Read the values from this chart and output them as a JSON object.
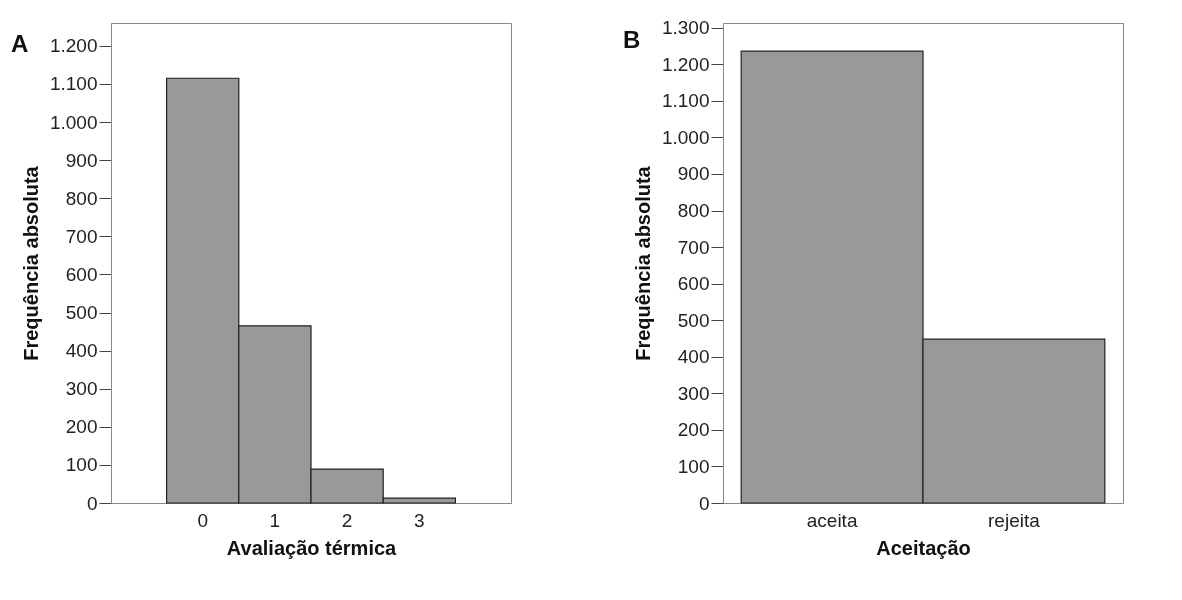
{
  "chart_data": [
    {
      "type": "bar",
      "title": "A",
      "xlabel": "Avaliação térmica",
      "ylabel": "Frequência absoluta",
      "categories": [
        "0",
        "1",
        "2",
        "3"
      ],
      "values": [
        1115,
        465,
        89,
        13
      ],
      "color": "#999999",
      "ylim": [
        0,
        1260
      ],
      "yticks": [
        {
          "value": 0,
          "label": "0"
        },
        {
          "value": 100,
          "label": "100"
        },
        {
          "value": 200,
          "label": "200"
        },
        {
          "value": 300,
          "label": "300"
        },
        {
          "value": 400,
          "label": "400"
        },
        {
          "value": 500,
          "label": "500"
        },
        {
          "value": 600,
          "label": "600"
        },
        {
          "value": 700,
          "label": "700"
        },
        {
          "value": 800,
          "label": "800"
        },
        {
          "value": 900,
          "label": "900"
        },
        {
          "value": 1000,
          "label": "1.000"
        },
        {
          "value": 1100,
          "label": "1.100"
        },
        {
          "value": 1200,
          "label": "1.200"
        }
      ],
      "grid": false
    },
    {
      "type": "bar",
      "title": "B",
      "xlabel": "Aceitação",
      "ylabel": "Frequência absoluta",
      "categories": [
        "aceita",
        "rejeita"
      ],
      "values": [
        1236,
        448
      ],
      "color": "#999999",
      "ylim": [
        0,
        1313
      ],
      "yticks": [
        {
          "value": 0,
          "label": "0"
        },
        {
          "value": 100,
          "label": "100"
        },
        {
          "value": 200,
          "label": "200"
        },
        {
          "value": 300,
          "label": "300"
        },
        {
          "value": 400,
          "label": "400"
        },
        {
          "value": 500,
          "label": "500"
        },
        {
          "value": 600,
          "label": "600"
        },
        {
          "value": 700,
          "label": "700"
        },
        {
          "value": 800,
          "label": "800"
        },
        {
          "value": 900,
          "label": "900"
        },
        {
          "value": 1000,
          "label": "1.000"
        },
        {
          "value": 1100,
          "label": "1.100"
        },
        {
          "value": 1200,
          "label": "1.200"
        },
        {
          "value": 1300,
          "label": "1.300"
        }
      ],
      "grid": false
    }
  ]
}
